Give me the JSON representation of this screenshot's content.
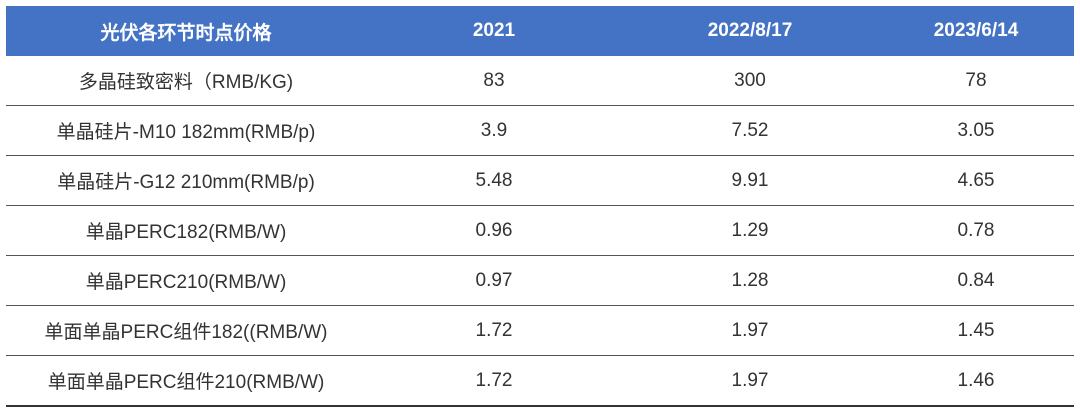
{
  "table": {
    "headers": [
      "光伏各环节时点价格",
      "2021",
      "2022/8/17",
      "2023/6/14"
    ],
    "rows": [
      [
        "多晶硅致密料（RMB/KG)",
        "83",
        "300",
        "78"
      ],
      [
        "单晶硅片-M10 182mm(RMB/p)",
        "3.9",
        "7.52",
        "3.05"
      ],
      [
        "单晶硅片-G12 210mm(RMB/p)",
        "5.48",
        "9.91",
        "4.65"
      ],
      [
        "单晶PERC182(RMB/W)",
        "0.96",
        "1.29",
        "0.78"
      ],
      [
        "单晶PERC210(RMB/W)",
        "0.97",
        "1.28",
        "0.84"
      ],
      [
        "单面单晶PERC组件182((RMB/W)",
        "1.72",
        "1.97",
        "1.45"
      ],
      [
        "单面单晶PERC组件210(RMB/W)",
        "1.72",
        "1.97",
        "1.46"
      ]
    ]
  },
  "colors": {
    "header_bg": "#4472c4",
    "header_text": "#ffffff",
    "body_text": "#333333"
  }
}
